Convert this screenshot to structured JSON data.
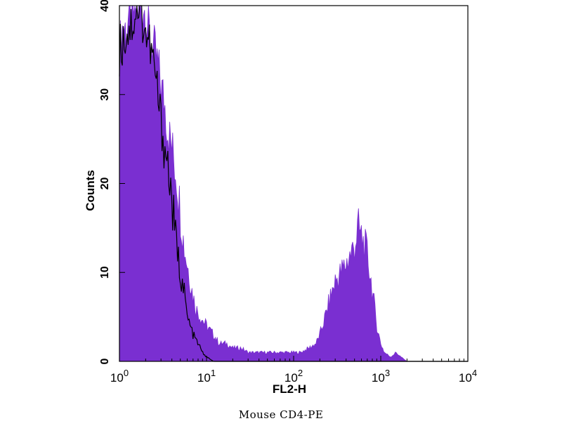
{
  "caption": "Mouse  CD4-PE",
  "chart_data": {
    "type": "area",
    "xlabel": "FL2-H",
    "ylabel": "Counts",
    "x_scale": "log10",
    "xlim": [
      1,
      10000
    ],
    "ylim": [
      0,
      40
    ],
    "x_ticks": [
      {
        "value": 1,
        "base": "10",
        "exp": "0"
      },
      {
        "value": 10,
        "base": "10",
        "exp": "1"
      },
      {
        "value": 100,
        "base": "10",
        "exp": "2"
      },
      {
        "value": 1000,
        "base": "10",
        "exp": "3"
      },
      {
        "value": 10000,
        "base": "10",
        "exp": "4"
      }
    ],
    "y_ticks": [
      0,
      10,
      20,
      30,
      40
    ],
    "grid": false,
    "series": [
      {
        "style": "filled",
        "color": "#7a2fd1",
        "points": [
          [
            1.0,
            35
          ],
          [
            1.1,
            38
          ],
          [
            1.2,
            37
          ],
          [
            1.3,
            39
          ],
          [
            1.4,
            38
          ],
          [
            1.5,
            40
          ],
          [
            1.7,
            39
          ],
          [
            1.9,
            40
          ],
          [
            2.1,
            38
          ],
          [
            2.3,
            36
          ],
          [
            2.5,
            35
          ],
          [
            2.8,
            33
          ],
          [
            3.0,
            31
          ],
          [
            3.3,
            29
          ],
          [
            3.6,
            26
          ],
          [
            4.0,
            24
          ],
          [
            4.5,
            21
          ],
          [
            5.0,
            17
          ],
          [
            5.5,
            13
          ],
          [
            6.0,
            11
          ],
          [
            6.8,
            8
          ],
          [
            7.5,
            6
          ],
          [
            8.5,
            5
          ],
          [
            10,
            4
          ],
          [
            12,
            3
          ],
          [
            14,
            2
          ],
          [
            17,
            2
          ],
          [
            20,
            1.5
          ],
          [
            25,
            1.5
          ],
          [
            30,
            1
          ],
          [
            40,
            1
          ],
          [
            50,
            1
          ],
          [
            60,
            1
          ],
          [
            80,
            1
          ],
          [
            100,
            1
          ],
          [
            120,
            1
          ],
          [
            150,
            1.5
          ],
          [
            180,
            2
          ],
          [
            200,
            3
          ],
          [
            230,
            5
          ],
          [
            260,
            7
          ],
          [
            300,
            9
          ],
          [
            350,
            10
          ],
          [
            400,
            11
          ],
          [
            450,
            12
          ],
          [
            500,
            13
          ],
          [
            550,
            15
          ],
          [
            600,
            14
          ],
          [
            650,
            13
          ],
          [
            700,
            12
          ],
          [
            750,
            10
          ],
          [
            800,
            8
          ],
          [
            850,
            6
          ],
          [
            900,
            4
          ],
          [
            1000,
            2
          ],
          [
            1100,
            1
          ],
          [
            1300,
            0.5
          ],
          [
            1500,
            1
          ],
          [
            1700,
            0.5
          ],
          [
            2000,
            0
          ],
          [
            10000,
            0
          ]
        ]
      },
      {
        "style": "outline",
        "color": "#000000",
        "points": [
          [
            1.0,
            35
          ],
          [
            1.2,
            37
          ],
          [
            1.4,
            38
          ],
          [
            1.6,
            40
          ],
          [
            1.8,
            39
          ],
          [
            2.0,
            37
          ],
          [
            2.3,
            35
          ],
          [
            2.6,
            32
          ],
          [
            2.9,
            28
          ],
          [
            3.2,
            25
          ],
          [
            3.6,
            22
          ],
          [
            4.0,
            18
          ],
          [
            4.5,
            13
          ],
          [
            5.0,
            10
          ],
          [
            5.5,
            8
          ],
          [
            6.0,
            5
          ],
          [
            7.0,
            3
          ],
          [
            8.0,
            2
          ],
          [
            9.0,
            1
          ],
          [
            10,
            0.5
          ],
          [
            12,
            0
          ],
          [
            10000,
            0
          ]
        ]
      }
    ]
  }
}
